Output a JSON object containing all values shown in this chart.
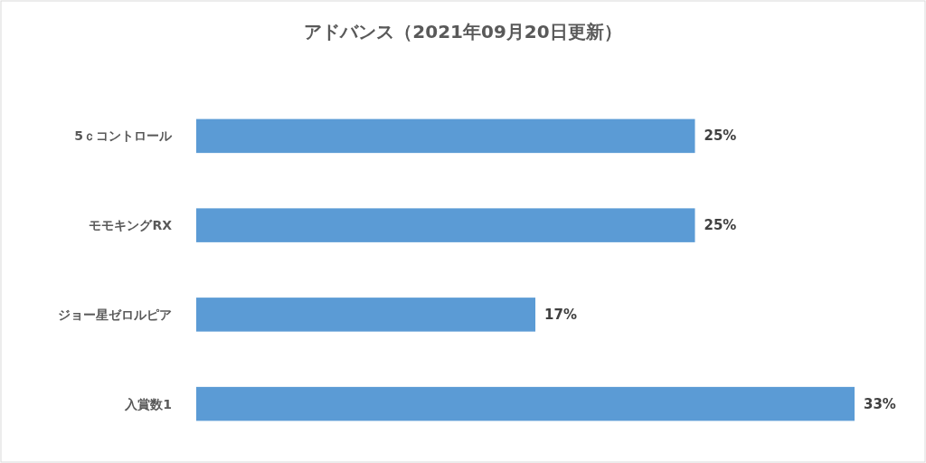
{
  "chart_data": {
    "type": "bar",
    "orientation": "horizontal",
    "title": "アドバンス（2021年09月20日更新）",
    "categories": [
      "5ｃコントロール",
      "モモキングRX",
      "ジョー星ゼロルピア",
      "入賞数1"
    ],
    "values": [
      25,
      25,
      17,
      33
    ],
    "value_labels": [
      "25%",
      "25%",
      "17%",
      "33%"
    ],
    "color": "#5b9bd5"
  }
}
